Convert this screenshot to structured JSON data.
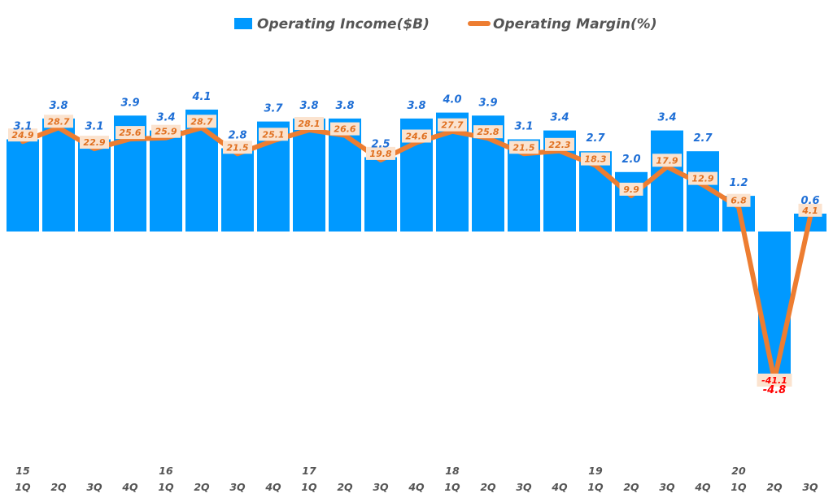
{
  "chart_data": {
    "type": "bar+line",
    "title": "",
    "legend": [
      {
        "name": "Operating Income($B)",
        "color": "#0099ff",
        "kind": "bar"
      },
      {
        "name": "Operating Margin(%)",
        "color": "#ed7d31",
        "kind": "line"
      }
    ],
    "categories": [
      "1Q",
      "2Q",
      "3Q",
      "4Q",
      "1Q",
      "2Q",
      "3Q",
      "4Q",
      "1Q",
      "2Q",
      "3Q",
      "4Q",
      "1Q",
      "2Q",
      "3Q",
      "4Q",
      "1Q",
      "2Q",
      "3Q",
      "4Q",
      "1Q",
      "2Q",
      "3Q"
    ],
    "year_labels": [
      "15",
      "",
      "",
      "",
      "16",
      "",
      "",
      "",
      "17",
      "",
      "",
      "",
      "18",
      "",
      "",
      "",
      "19",
      "",
      "",
      "",
      "20",
      "",
      ""
    ],
    "series": [
      {
        "name": "Operating Income($B)",
        "type": "bar",
        "values": [
          3.1,
          3.8,
          3.1,
          3.9,
          3.4,
          4.1,
          2.8,
          3.7,
          3.8,
          3.8,
          2.5,
          3.8,
          4.0,
          3.9,
          3.1,
          3.4,
          2.7,
          2.0,
          3.4,
          2.7,
          1.2,
          -4.8,
          0.6
        ],
        "labels": [
          "3.1",
          "3.8",
          "3.1",
          "3.9",
          "3.4",
          "4.1",
          "2.8",
          "3.7",
          "3.8",
          "3.8",
          "2.5",
          "3.8",
          "4.0",
          "3.9",
          "3.1",
          "3.4",
          "2.7",
          "2.0",
          "3.4",
          "2.7",
          "1.2",
          "-4.8",
          "0.6"
        ]
      },
      {
        "name": "Operating Margin(%)",
        "type": "line",
        "values": [
          24.9,
          28.7,
          22.9,
          25.6,
          25.9,
          28.7,
          21.5,
          25.1,
          28.1,
          26.6,
          19.8,
          24.6,
          27.7,
          25.8,
          21.5,
          22.3,
          18.3,
          9.9,
          17.9,
          12.9,
          6.8,
          -41.1,
          4.1
        ],
        "labels": [
          "24.9",
          "28.7",
          "22.9",
          "25.6",
          "25.9",
          "28.7",
          "21.5",
          "25.1",
          "28.1",
          "26.6",
          "19.8",
          "24.6",
          "27.7",
          "25.8",
          "21.5",
          "22.3",
          "18.3",
          "9.9",
          "17.9",
          "12.9",
          "6.8",
          "-41.1",
          "4.1"
        ]
      }
    ],
    "grid": false,
    "legend_position": "top-center"
  }
}
